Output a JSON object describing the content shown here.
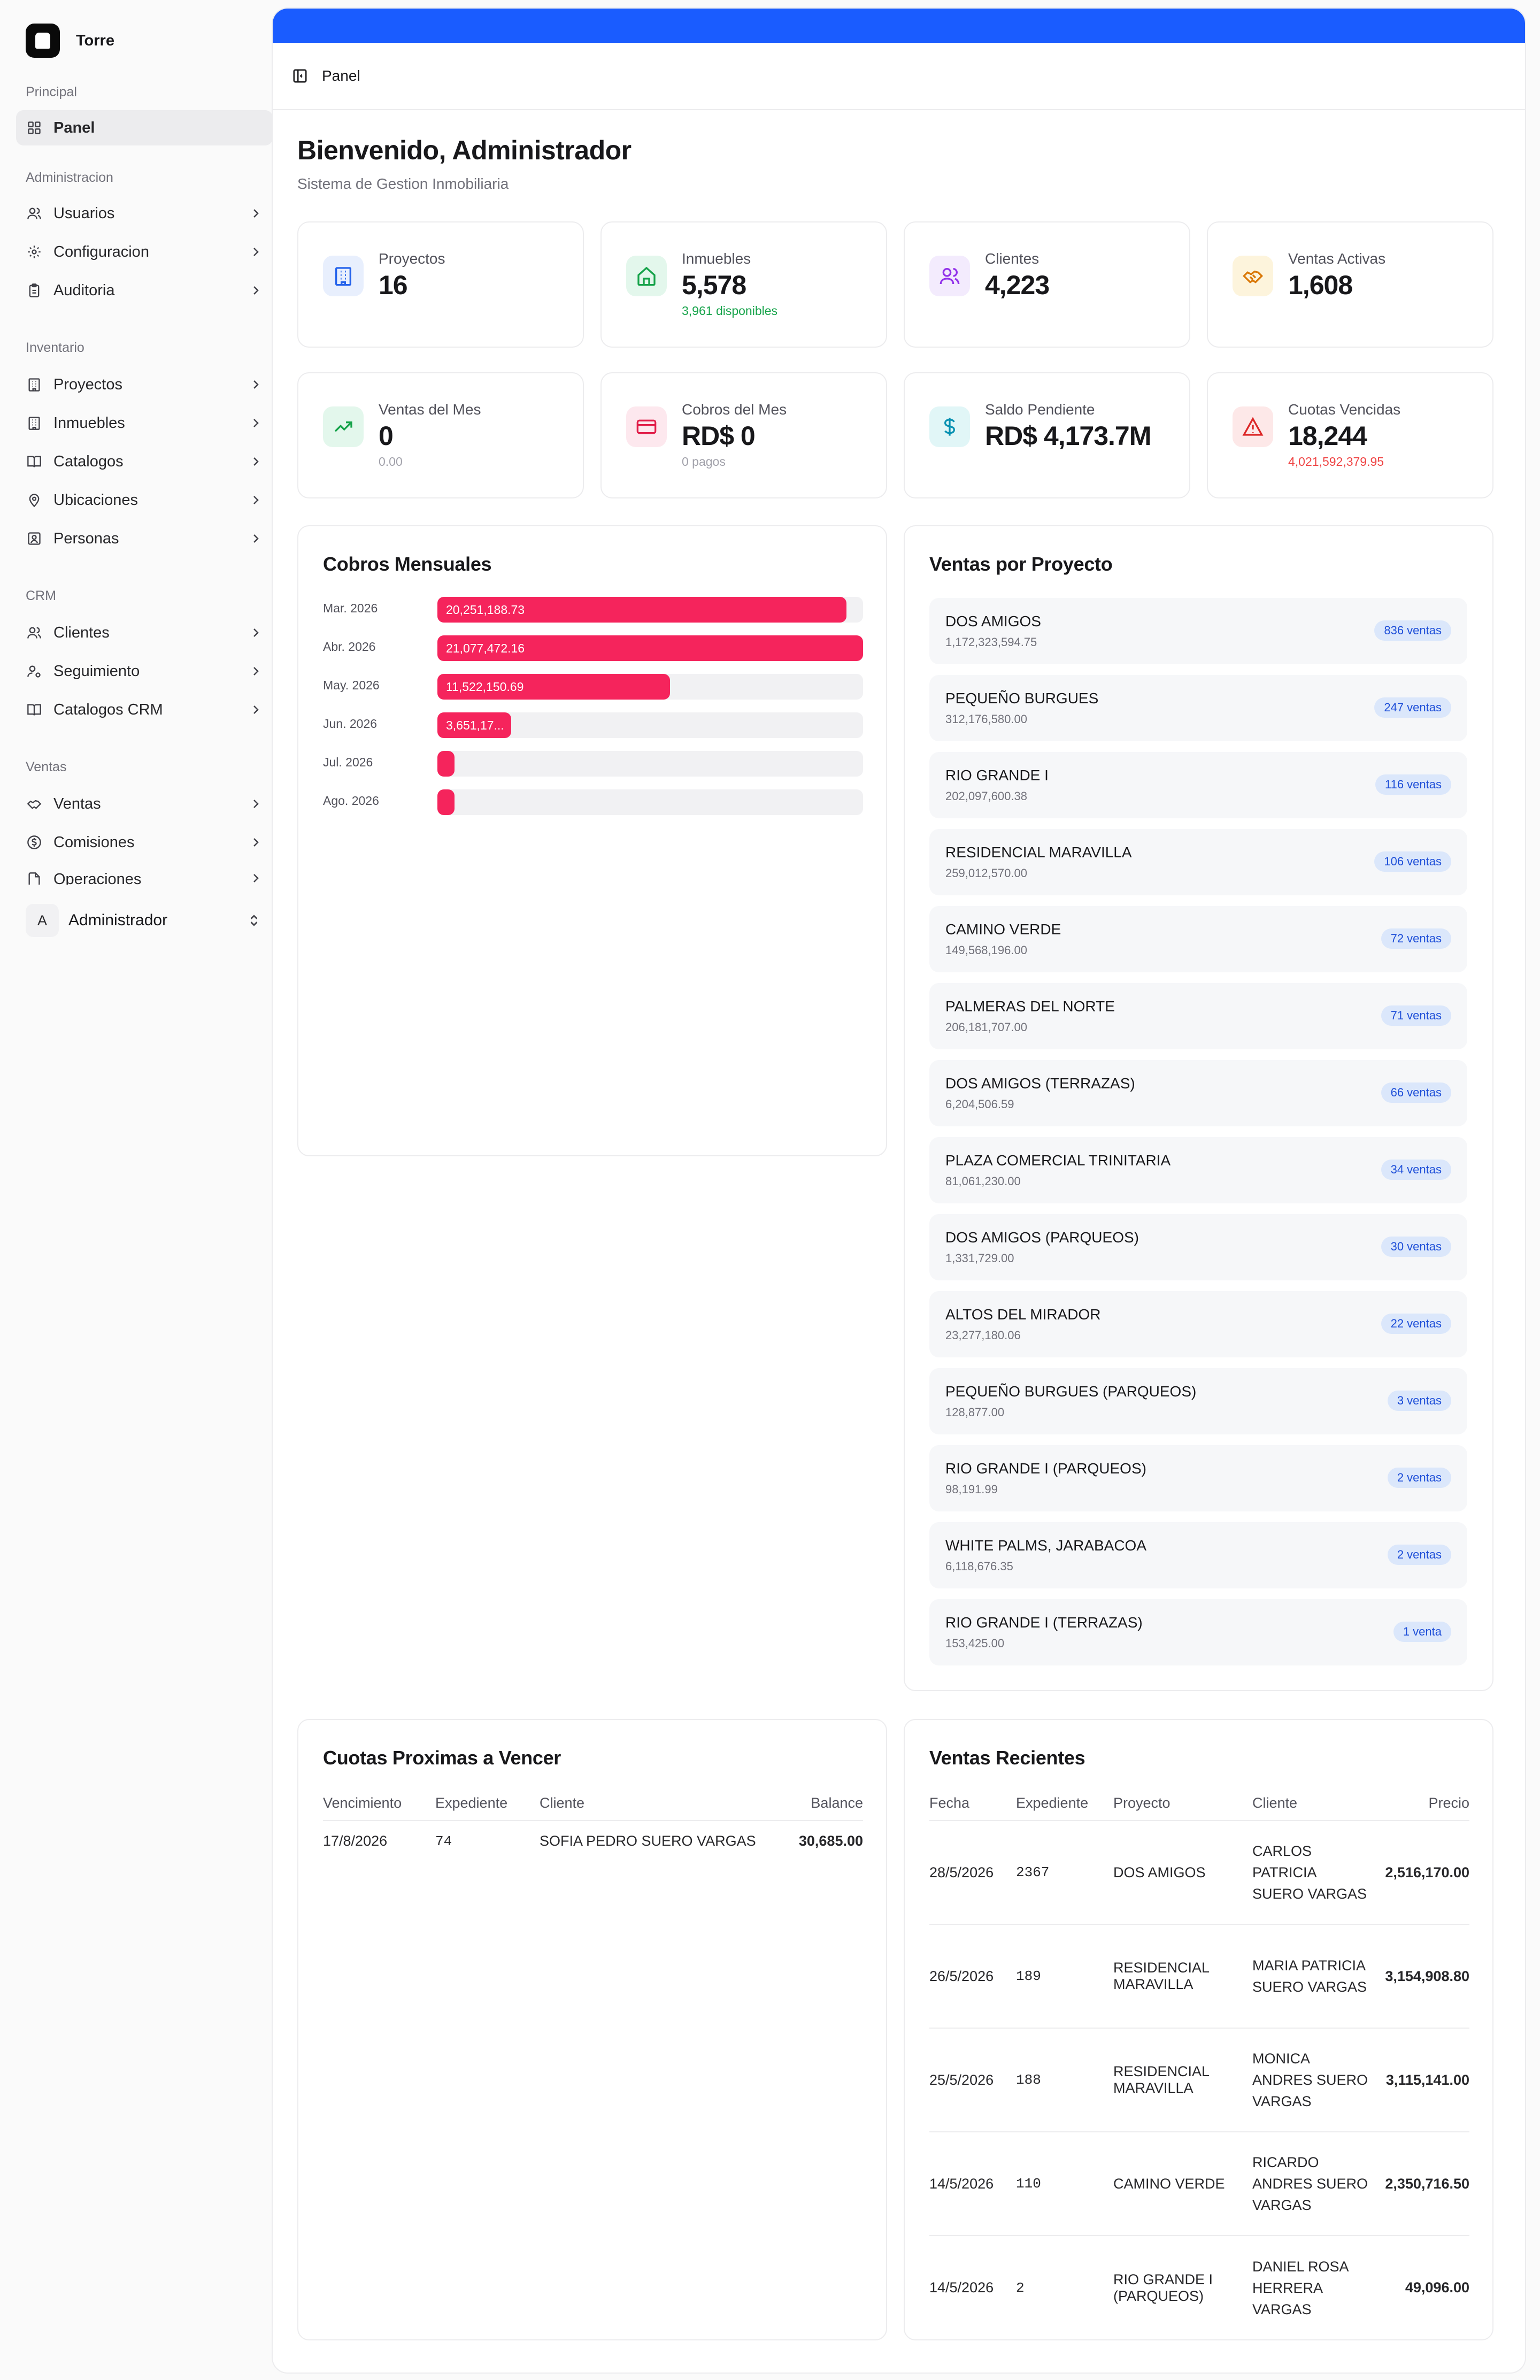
{
  "app": {
    "name": "Torre"
  },
  "sidebar": {
    "sections": {
      "principal": "Principal",
      "administracion": "Administracion",
      "inventario": "Inventario",
      "crm": "CRM",
      "ventas": "Ventas"
    },
    "items": {
      "panel": "Panel",
      "usuarios": "Usuarios",
      "configuracion": "Configuracion",
      "auditoria": "Auditoria",
      "proyectos": "Proyectos",
      "inmuebles": "Inmuebles",
      "catalogos": "Catalogos",
      "ubicaciones": "Ubicaciones",
      "personas": "Personas",
      "clientes": "Clientes",
      "seguimiento": "Seguimiento",
      "catalogos_crm": "Catalogos CRM",
      "ventas": "Ventas",
      "comisiones": "Comisiones",
      "operaciones": "Operaciones"
    },
    "user": {
      "initial": "A",
      "name": "Administrador"
    }
  },
  "header": {
    "breadcrumb": "Panel"
  },
  "page": {
    "title": "Bienvenido, Administrador",
    "subtitle": "Sistema de Gestion Inmobiliaria"
  },
  "stats": [
    {
      "label": "Proyectos",
      "value": "16",
      "sub": ""
    },
    {
      "label": "Inmuebles",
      "value": "5,578",
      "sub": "3,961 disponibles"
    },
    {
      "label": "Clientes",
      "value": "4,223",
      "sub": ""
    },
    {
      "label": "Ventas Activas",
      "value": "1,608",
      "sub": ""
    },
    {
      "label": "Ventas del Mes",
      "value": "0",
      "sub": "0.00"
    },
    {
      "label": "Cobros del Mes",
      "value": "RD$ 0",
      "sub": "0 pagos"
    },
    {
      "label": "Saldo Pendiente",
      "value": "RD$ 4,173.7M",
      "sub": ""
    },
    {
      "label": "Cuotas Vencidas",
      "value": "18,244",
      "sub": "4,021,592,379.95"
    }
  ],
  "colors": {
    "accent": "#1a5cff",
    "bar": "#f5245c",
    "badge_bg": "#dbe7fb",
    "badge_text": "#1d4ed8"
  },
  "cobros": {
    "title": "Cobros Mensuales",
    "chart_data": {
      "type": "bar",
      "orientation": "horizontal",
      "categories": [
        "Mar. 2026",
        "Abr. 2026",
        "May. 2026",
        "Jun. 2026",
        "Jul. 2026",
        "Ago. 2026"
      ],
      "values": [
        20251188.73,
        21077472.16,
        11522150.69,
        3651170,
        0,
        0
      ],
      "labels": [
        "20,251,188.73",
        "21,077,472.16",
        "11,522,150.69",
        "3,651,17...",
        "",
        ""
      ]
    }
  },
  "ventas_proyecto": {
    "title": "Ventas por Proyecto",
    "items": [
      {
        "name": "DOS AMIGOS",
        "amount": "1,172,323,594.75",
        "badge": "836 ventas"
      },
      {
        "name": "PEQUEÑO BURGUES",
        "amount": "312,176,580.00",
        "badge": "247 ventas"
      },
      {
        "name": "RIO GRANDE I",
        "amount": "202,097,600.38",
        "badge": "116 ventas"
      },
      {
        "name": "RESIDENCIAL MARAVILLA",
        "amount": "259,012,570.00",
        "badge": "106 ventas"
      },
      {
        "name": "CAMINO VERDE",
        "amount": "149,568,196.00",
        "badge": "72 ventas"
      },
      {
        "name": "PALMERAS DEL NORTE",
        "amount": "206,181,707.00",
        "badge": "71 ventas"
      },
      {
        "name": "DOS AMIGOS (TERRAZAS)",
        "amount": "6,204,506.59",
        "badge": "66 ventas"
      },
      {
        "name": "PLAZA COMERCIAL TRINITARIA",
        "amount": "81,061,230.00",
        "badge": "34 ventas"
      },
      {
        "name": "DOS AMIGOS (PARQUEOS)",
        "amount": "1,331,729.00",
        "badge": "30 ventas"
      },
      {
        "name": "ALTOS DEL MIRADOR",
        "amount": "23,277,180.06",
        "badge": "22 ventas"
      },
      {
        "name": "PEQUEÑO BURGUES (PARQUEOS)",
        "amount": "128,877.00",
        "badge": "3 ventas"
      },
      {
        "name": "RIO GRANDE I (PARQUEOS)",
        "amount": "98,191.99",
        "badge": "2 ventas"
      },
      {
        "name": "WHITE PALMS, JARABACOA",
        "amount": "6,118,676.35",
        "badge": "2 ventas"
      },
      {
        "name": "RIO GRANDE I (TERRAZAS)",
        "amount": "153,425.00",
        "badge": "1 venta"
      }
    ]
  },
  "cuotas": {
    "title": "Cuotas Proximas a Vencer",
    "columns": [
      "Vencimiento",
      "Expediente",
      "Cliente",
      "Balance"
    ],
    "rows": [
      [
        "17/8/2026",
        "74",
        "SOFIA PEDRO SUERO VARGAS",
        "30,685.00"
      ]
    ]
  },
  "recientes": {
    "title": "Ventas Recientes",
    "columns": [
      "Fecha",
      "Expediente",
      "Proyecto",
      "Cliente",
      "Precio"
    ],
    "rows": [
      [
        "28/5/2026",
        "2367",
        "DOS AMIGOS",
        "CARLOS PATRICIA SUERO VARGAS",
        "2,516,170.00"
      ],
      [
        "26/5/2026",
        "189",
        "RESIDENCIAL MARAVILLA",
        "MARIA PATRICIA SUERO VARGAS",
        "3,154,908.80"
      ],
      [
        "25/5/2026",
        "188",
        "RESIDENCIAL MARAVILLA",
        "MONICA ANDRES SUERO VARGAS",
        "3,115,141.00"
      ],
      [
        "14/5/2026",
        "110",
        "CAMINO VERDE",
        "RICARDO ANDRES SUERO VARGAS",
        "2,350,716.50"
      ],
      [
        "14/5/2026",
        "2",
        "RIO GRANDE I (PARQUEOS)",
        "DANIEL ROSA HERRERA VARGAS",
        "49,096.00"
      ]
    ]
  }
}
